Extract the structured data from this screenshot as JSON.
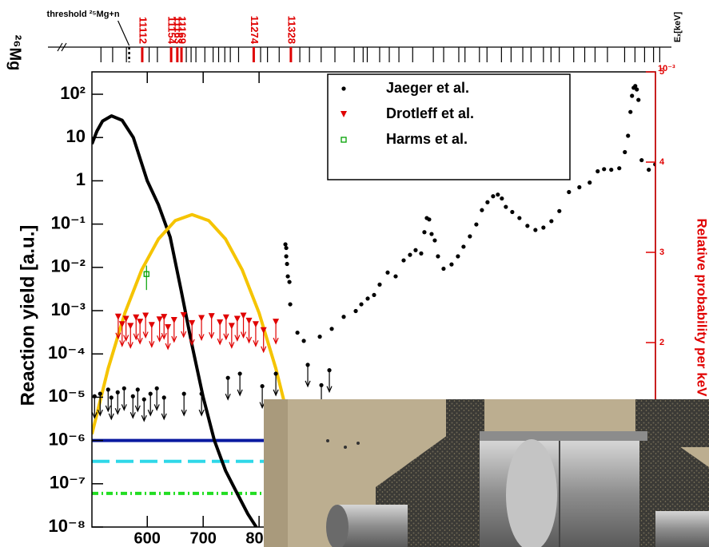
{
  "chart_data": {
    "type": "scatter",
    "ylabel": "Reaction yield [a.u.]",
    "y2label": "Relative probability per keV",
    "y2_multiplier": "10⁻³",
    "xlim": [
      501,
      1509
    ],
    "xticks": [
      600,
      700,
      800
    ],
    "ylim": [
      1e-08,
      329
    ],
    "log_y": true,
    "yticks": [
      {
        "value": 1e-08,
        "label": "10⁻⁸"
      },
      {
        "value": 1e-07,
        "label": "10⁻⁷"
      },
      {
        "value": 1e-06,
        "label": "10⁻⁶"
      },
      {
        "value": 1e-05,
        "label": "10⁻⁵"
      },
      {
        "value": 0.0001,
        "label": "10⁻⁴"
      },
      {
        "value": 0.001,
        "label": "10⁻³"
      },
      {
        "value": 0.01,
        "label": "10⁻²"
      },
      {
        "value": 0.1,
        "label": "10⁻¹"
      },
      1,
      10,
      {
        "value": 100,
        "label": "10²"
      }
    ],
    "y2lim": [
      -0.044,
      5
    ],
    "y2ticks": [
      2,
      3,
      4,
      5
    ],
    "y2color": "#e00000",
    "legend": "upper right",
    "series": [
      {
        "name": "Jaeger et al.",
        "color": "#000000",
        "marker": "dot",
        "x": [
          847.1,
          848.6,
          848.6,
          850,
          851.4,
          854.3,
          855.7,
          868.6,
          880,
          908.6,
          930,
          951.4,
          972.9,
          982.9,
          994.3,
          1005.7,
          1015.7,
          1030,
          1044.3,
          1058.6,
          1070,
          1080,
          1090,
          1095.7,
          1100,
          1104.3,
          1108.6,
          1114.3,
          1120,
          1130,
          1144.3,
          1155.7,
          1165.7,
          1177.1,
          1188.6,
          1198.6,
          1208.6,
          1218.6,
          1227.1,
          1234.3,
          1241.4,
          1252.9,
          1265.7,
          1280,
          1294.3,
          1308.6,
          1322.9,
          1337.1,
          1354.3,
          1372.9,
          1391.4,
          1405.7,
          1417.1,
          1430,
          1444.3,
          1454.3,
          1460,
          1464.3,
          1467.1,
          1470,
          1472.9,
          1475.7,
          1478.6,
          1484.3,
          1497.1,
          1508.6
        ],
        "values": [
          0.034,
          0.028,
          0.018,
          0.012,
          0.0062,
          0.0046,
          0.0014,
          0.00031,
          0.0002,
          0.00025,
          0.00038,
          0.00072,
          0.00098,
          0.0014,
          0.0019,
          0.0023,
          0.004,
          0.0076,
          0.0062,
          0.0145,
          0.0195,
          0.025,
          0.021,
          0.065,
          0.138,
          0.128,
          0.059,
          0.042,
          0.018,
          0.0093,
          0.0117,
          0.018,
          0.03,
          0.052,
          0.098,
          0.21,
          0.32,
          0.44,
          0.48,
          0.39,
          0.25,
          0.19,
          0.138,
          0.091,
          0.073,
          0.083,
          0.117,
          0.2,
          0.55,
          0.71,
          0.91,
          1.66,
          1.86,
          1.8,
          1.95,
          4.6,
          11,
          39,
          92,
          141,
          155,
          129,
          74,
          3.0,
          1.8,
          2.4
        ],
        "limits": {
          "x": [
            505.7,
            515.7,
            530,
            535.7,
            547.1,
            558.6,
            574.3,
            582.9,
            594.3,
            605.7,
            617.1,
            630,
            665.7,
            697.1,
            744.3,
            765.7,
            805.7,
            830,
            887.1,
            911.4,
            925.7
          ],
          "values": [
            1.05e-05,
            1.2e-05,
            1.5e-05,
            9.8e-06,
            1.3e-05,
            1.6e-05,
            1.05e-05,
            1.5e-05,
            8.9e-06,
            1.2e-05,
            1.6e-05,
            9.8e-06,
            1.2e-05,
            1.2e-05,
            2.8e-05,
            3.5e-05,
            1.8e-05,
            3.5e-05,
            5.6e-05,
            1.9e-05,
            4.2e-05
          ]
        }
      },
      {
        "name": "Drotleff et al.",
        "color": "#e00000",
        "marker": "triangle-down",
        "limits": {
          "x": [
            548,
            555,
            562,
            570,
            580,
            587,
            597,
            608,
            622,
            630,
            637,
            648,
            665,
            680,
            697,
            715,
            730,
            741,
            751,
            761,
            772,
            782,
            794,
            808,
            830
          ],
          "values": [
            0.00072,
            0.00048,
            0.00064,
            0.00044,
            0.00069,
            0.00055,
            0.00076,
            0.00046,
            0.00062,
            0.00071,
            0.00041,
            0.0006,
            0.00078,
            0.00051,
            0.00067,
            0.00074,
            0.00053,
            0.00069,
            0.00044,
            0.00064,
            0.00076,
            0.00058,
            0.00048,
            0.00035,
            0.00055
          ]
        }
      },
      {
        "name": "Harms et al.",
        "color": "#00a000",
        "marker": "open-square",
        "x": [
          598.6
        ],
        "values": [
          0.007
        ],
        "errors": [
          0.004
        ]
      }
    ],
    "curves": [
      {
        "color": "#000000",
        "x": [
          501,
          510,
          520,
          536,
          555,
          575,
          600,
          620,
          641,
          660,
          680,
          700,
          720,
          740,
          760,
          780,
          800
        ],
        "values": [
          7.1,
          14.1,
          24,
          31.6,
          25.1,
          10,
          1,
          0.28,
          0.05,
          0.0032,
          0.00016,
          1e-05,
          1e-06,
          2e-07,
          6.3e-08,
          2e-08,
          7.9e-09
        ]
      },
      {
        "color": "#f5c400",
        "x": [
          501,
          530,
          560,
          590,
          620,
          650,
          680,
          710,
          740,
          770,
          800,
          830,
          860,
          890
        ],
        "values": [
          1.4e-06,
          4.6e-05,
          0.00089,
          0.0087,
          0.045,
          0.12,
          0.166,
          0.12,
          0.045,
          0.0087,
          0.00089,
          4.6e-05,
          1.3e-06,
          1.8e-08
        ]
      }
    ],
    "hlines": [
      {
        "value": 1e-06,
        "color": "#0a1aa0",
        "style": "solid"
      },
      {
        "value": 3.3e-07,
        "color": "#2fd8e8",
        "style": "dashed"
      },
      {
        "value": 6e-08,
        "color": "#22dd22",
        "style": "dashdot"
      }
    ],
    "level_scheme": {
      "label": "²⁶Mg",
      "axis_label": "Eₓ[keV]",
      "threshold_label": "threshold ²⁵Mg+n",
      "threshold": 11093,
      "xlim": [
        10975,
        11881
      ],
      "levels": [
        11052,
        11069,
        11089,
        11122,
        11134,
        11176,
        11183,
        11190,
        11203,
        11215,
        11223,
        11232,
        11240,
        11252,
        11284,
        11294,
        11311,
        11341,
        11355,
        11372,
        11392,
        11420,
        11433,
        11439,
        11457,
        11471,
        11485,
        11505,
        11535,
        11550,
        11572,
        11581,
        11602,
        11613,
        11634,
        11648,
        11665,
        11677,
        11695,
        11706,
        11718,
        11739,
        11755,
        11770,
        11788,
        11813,
        11828,
        11842,
        11855,
        11864
      ],
      "labeled_levels": [
        11112,
        11154,
        11163,
        11169,
        11274,
        11328
      ],
      "labeled_color": "#e00000"
    }
  }
}
